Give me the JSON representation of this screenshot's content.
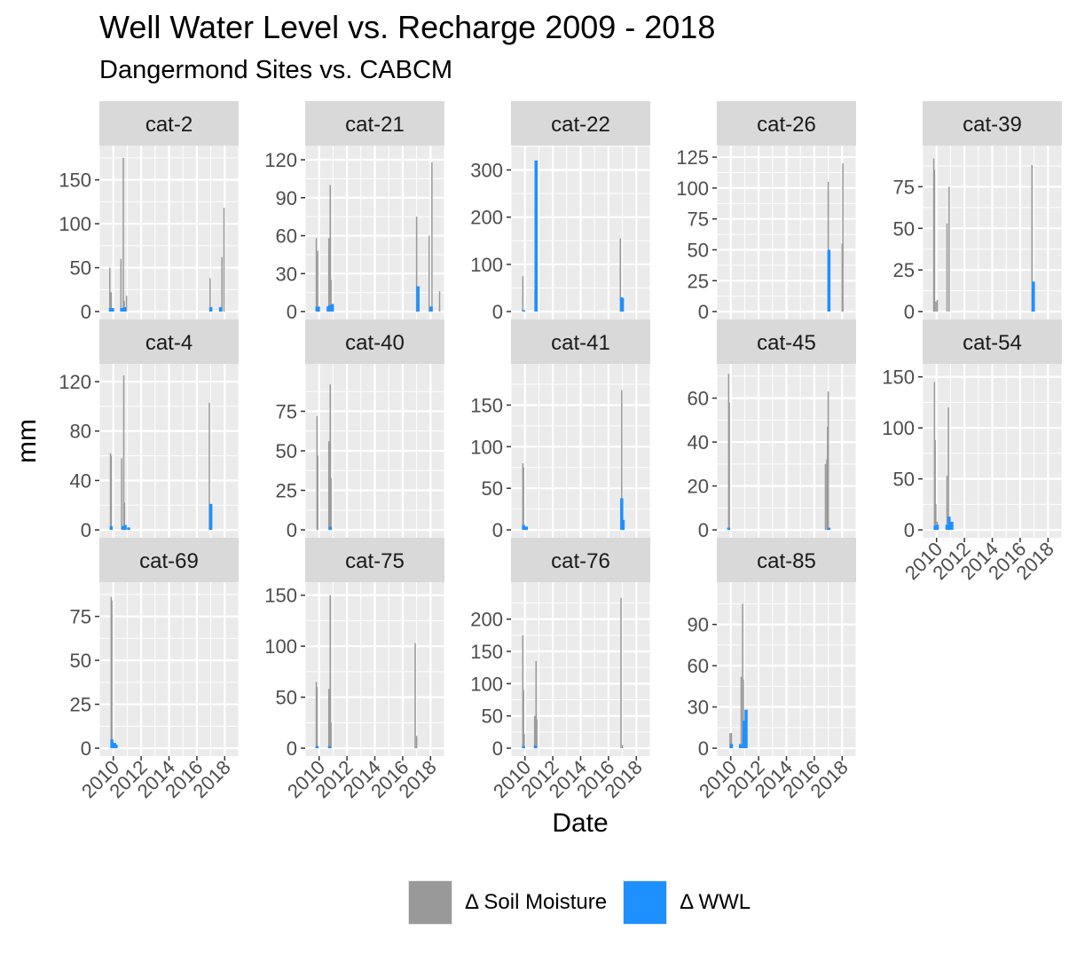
{
  "chart_data": {
    "type": "bar",
    "title": "Well Water Level vs. Recharge 2009 - 2018",
    "subtitle": "Dangermond Sites vs. CABCM",
    "xlabel": "Date",
    "ylabel": "mm",
    "x_ticks": [
      "2010",
      "2012",
      "2014",
      "2016",
      "2018"
    ],
    "x_domain": [
      2009.0,
      2019.0
    ],
    "grid": true,
    "legend_position": "bottom",
    "colors": {
      "soil": "#999999",
      "wwl": "#1e90ff",
      "panel": "#ebebeb",
      "strip": "#d9d9d9",
      "grid": "#ffffff"
    },
    "series": [
      {
        "name": "Δ Soil Moisture",
        "key": "soil"
      },
      {
        "name": "Δ WWL",
        "key": "wwl"
      }
    ],
    "panels": [
      {
        "label": "cat-2",
        "ymax": 180,
        "yticks": [
          0,
          50,
          100,
          150
        ],
        "soil": [
          [
            2009.75,
            50
          ],
          [
            2009.85,
            22
          ],
          [
            2010.55,
            60
          ],
          [
            2010.72,
            175
          ],
          [
            2010.78,
            12
          ],
          [
            2010.95,
            18
          ],
          [
            2016.95,
            38
          ],
          [
            2017.8,
            62
          ],
          [
            2017.95,
            118
          ]
        ],
        "wwl": [
          [
            2009.8,
            4
          ],
          [
            2009.95,
            4
          ],
          [
            2010.6,
            4
          ],
          [
            2010.8,
            5
          ],
          [
            2017.0,
            5
          ],
          [
            2017.7,
            5
          ]
        ]
      },
      {
        "label": "cat-21",
        "ymax": 125,
        "yticks": [
          0,
          30,
          60,
          90,
          120
        ],
        "soil": [
          [
            2009.8,
            58
          ],
          [
            2009.9,
            48
          ],
          [
            2010.7,
            58
          ],
          [
            2010.8,
            100
          ],
          [
            2010.85,
            25
          ],
          [
            2017.0,
            75
          ],
          [
            2017.9,
            60
          ],
          [
            2018.1,
            118
          ],
          [
            2018.65,
            16
          ]
        ],
        "wwl": [
          [
            2009.85,
            4
          ],
          [
            2009.95,
            4
          ],
          [
            2010.65,
            4
          ],
          [
            2010.75,
            5
          ],
          [
            2010.95,
            6
          ],
          [
            2017.1,
            20
          ],
          [
            2018.05,
            4
          ]
        ]
      },
      {
        "label": "cat-22",
        "ymax": 335,
        "yticks": [
          0,
          100,
          200,
          300
        ],
        "soil": [
          [
            2009.85,
            75
          ],
          [
            2010.72,
            45
          ],
          [
            2016.85,
            155
          ]
        ],
        "wwl": [
          [
            2009.9,
            3
          ],
          [
            2010.8,
            320
          ],
          [
            2016.95,
            30
          ],
          [
            2017.0,
            28
          ]
        ]
      },
      {
        "label": "cat-26",
        "ymax": 128,
        "yticks": [
          0,
          25,
          50,
          75,
          100,
          125
        ],
        "soil": [
          [
            2017.0,
            105
          ],
          [
            2017.05,
            50
          ],
          [
            2018.05,
            120
          ],
          [
            2018.0,
            55
          ]
        ],
        "wwl": [
          [
            2017.05,
            50
          ]
        ]
      },
      {
        "label": "cat-39",
        "ymax": 95,
        "yticks": [
          0,
          25,
          50,
          75
        ],
        "soil": [
          [
            2009.8,
            92
          ],
          [
            2009.85,
            85
          ],
          [
            2009.95,
            6
          ],
          [
            2010.05,
            7
          ],
          [
            2010.75,
            53
          ],
          [
            2010.9,
            75
          ],
          [
            2016.85,
            88
          ]
        ],
        "wwl": [
          [
            2016.95,
            18
          ]
        ]
      },
      {
        "label": "cat-4",
        "ymax": 128,
        "yticks": [
          0,
          40,
          80,
          120
        ],
        "soil": [
          [
            2009.8,
            62
          ],
          [
            2009.85,
            60
          ],
          [
            2010.6,
            58
          ],
          [
            2010.75,
            125
          ],
          [
            2010.8,
            22
          ],
          [
            2016.9,
            103
          ]
        ],
        "wwl": [
          [
            2009.85,
            3
          ],
          [
            2010.7,
            3
          ],
          [
            2010.85,
            4
          ],
          [
            2011.1,
            2
          ],
          [
            2017.0,
            21
          ]
        ]
      },
      {
        "label": "cat-40",
        "ymax": 100,
        "yticks": [
          0,
          25,
          50,
          75
        ],
        "soil": [
          [
            2009.85,
            72
          ],
          [
            2009.9,
            47
          ],
          [
            2010.7,
            56
          ],
          [
            2010.8,
            92
          ],
          [
            2010.85,
            33
          ]
        ],
        "wwl": [
          [
            2010.8,
            2
          ]
        ]
      },
      {
        "label": "cat-41",
        "ymax": 190,
        "yticks": [
          0,
          50,
          100,
          150
        ],
        "soil": [
          [
            2009.85,
            80
          ],
          [
            2009.9,
            75
          ],
          [
            2016.95,
            168
          ]
        ],
        "wwl": [
          [
            2009.9,
            6
          ],
          [
            2010.1,
            4
          ],
          [
            2016.95,
            38
          ],
          [
            2017.05,
            12
          ]
        ]
      },
      {
        "label": "cat-45",
        "ymax": 72,
        "yticks": [
          0,
          20,
          40,
          60
        ],
        "soil": [
          [
            2009.85,
            71
          ],
          [
            2009.9,
            58
          ],
          [
            2016.8,
            30
          ],
          [
            2016.9,
            32
          ],
          [
            2016.95,
            47
          ],
          [
            2017.0,
            63
          ]
        ],
        "wwl": [
          [
            2009.85,
            1
          ],
          [
            2017.05,
            1
          ]
        ]
      },
      {
        "label": "cat-54",
        "ymax": 155,
        "yticks": [
          0,
          50,
          100,
          150
        ],
        "soil": [
          [
            2009.85,
            145
          ],
          [
            2009.9,
            88
          ],
          [
            2009.95,
            25
          ],
          [
            2010.05,
            8
          ],
          [
            2010.75,
            53
          ],
          [
            2010.85,
            120
          ]
        ],
        "wwl": [
          [
            2009.9,
            4
          ],
          [
            2010.05,
            5
          ],
          [
            2010.75,
            5
          ],
          [
            2010.9,
            13
          ],
          [
            2011.1,
            8
          ]
        ]
      },
      {
        "label": "cat-69",
        "ymax": 90,
        "yticks": [
          0,
          25,
          50,
          75
        ],
        "soil": [
          [
            2009.85,
            86
          ],
          [
            2009.9,
            84
          ]
        ],
        "wwl": [
          [
            2009.9,
            5
          ],
          [
            2010.1,
            3
          ],
          [
            2010.2,
            2
          ]
        ]
      },
      {
        "label": "cat-75",
        "ymax": 155,
        "yticks": [
          0,
          50,
          100,
          150
        ],
        "soil": [
          [
            2009.8,
            65
          ],
          [
            2009.85,
            60
          ],
          [
            2010.7,
            58
          ],
          [
            2010.8,
            150
          ],
          [
            2010.85,
            25
          ],
          [
            2016.9,
            103
          ],
          [
            2017.0,
            12
          ]
        ],
        "wwl": [
          [
            2009.85,
            2
          ],
          [
            2010.75,
            2
          ]
        ]
      },
      {
        "label": "cat-76",
        "ymax": 245,
        "yticks": [
          0,
          50,
          100,
          150,
          200
        ],
        "soil": [
          [
            2009.85,
            175
          ],
          [
            2009.9,
            90
          ],
          [
            2009.95,
            22
          ],
          [
            2010.7,
            50
          ],
          [
            2010.8,
            135
          ],
          [
            2010.85,
            45
          ],
          [
            2016.9,
            233
          ],
          [
            2017.0,
            5
          ]
        ],
        "wwl": [
          [
            2009.9,
            3
          ],
          [
            2010.75,
            4
          ]
        ]
      },
      {
        "label": "cat-85",
        "ymax": 115,
        "yticks": [
          0,
          30,
          60,
          90
        ],
        "soil": [
          [
            2009.95,
            11
          ],
          [
            2010.05,
            11
          ],
          [
            2010.75,
            52
          ],
          [
            2010.85,
            105
          ],
          [
            2010.9,
            50
          ]
        ],
        "wwl": [
          [
            2010.05,
            3
          ],
          [
            2010.7,
            3
          ],
          [
            2010.95,
            20
          ],
          [
            2011.1,
            28
          ]
        ]
      }
    ]
  }
}
